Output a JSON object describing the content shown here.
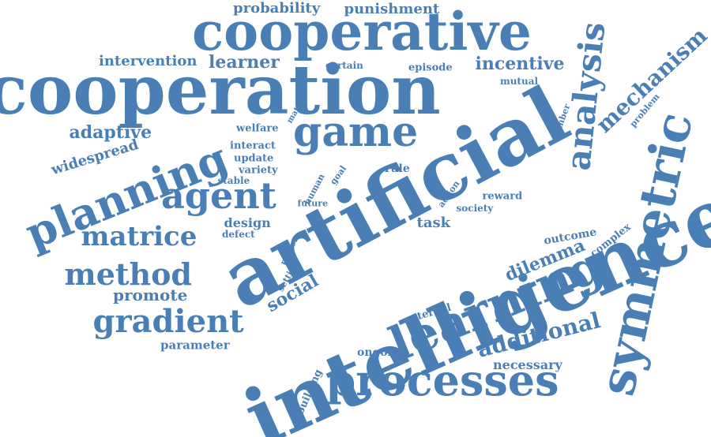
{
  "colors": {
    "word": "#4a7fb5",
    "background": "#ffffff"
  },
  "words": [
    "intelligence",
    "artificial",
    "cooperation",
    "cooperative",
    "symmetric",
    "learning",
    "processes",
    "planning",
    "game",
    "agent",
    "analysis",
    "gradient",
    "method",
    "matrice",
    "mechanism",
    "additional",
    "adaptive",
    "incentive",
    "intervention",
    "learner",
    "probability",
    "punishment",
    "widespread",
    "dilemma",
    "social",
    "promote",
    "parameter",
    "design",
    "task",
    "necessary",
    "outcome",
    "complex",
    "ongoing",
    "external",
    "building",
    "episode",
    "certain",
    "mutual",
    "number",
    "problem",
    "welfare",
    "interact",
    "update",
    "variety",
    "stable",
    "defect",
    "human",
    "goal",
    "future",
    "rule",
    "action",
    "reward",
    "society",
    "player",
    "setting",
    "matrix"
  ]
}
